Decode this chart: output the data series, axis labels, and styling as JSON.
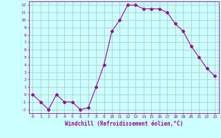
{
  "x": [
    0,
    1,
    2,
    3,
    4,
    5,
    6,
    7,
    8,
    9,
    10,
    11,
    12,
    13,
    14,
    15,
    16,
    17,
    18,
    19,
    20,
    21,
    22,
    23
  ],
  "y": [
    0,
    -1,
    -2,
    0,
    -1,
    -1,
    -2,
    -1.8,
    1,
    4,
    8.5,
    10,
    12,
    12,
    11.5,
    11.5,
    11.5,
    11,
    9.5,
    8.5,
    6.5,
    5,
    3.5,
    2.5
  ],
  "line_color": "#990099",
  "marker": "D",
  "marker_size": 2,
  "bg_color": "#ccffff",
  "grid_color": "#aacccc",
  "xlabel": "Windchill (Refroidissement éolien,°C)",
  "xlabel_color": "#990099",
  "tick_color": "#990099",
  "xlim": [
    -0.5,
    23.5
  ],
  "ylim": [
    -2.5,
    12.5
  ],
  "yticks": [
    -2,
    -1,
    0,
    1,
    2,
    3,
    4,
    5,
    6,
    7,
    8,
    9,
    10,
    11,
    12
  ],
  "xticks": [
    0,
    1,
    2,
    3,
    4,
    5,
    6,
    7,
    8,
    9,
    10,
    11,
    12,
    13,
    14,
    15,
    16,
    17,
    18,
    19,
    20,
    21,
    22,
    23
  ]
}
